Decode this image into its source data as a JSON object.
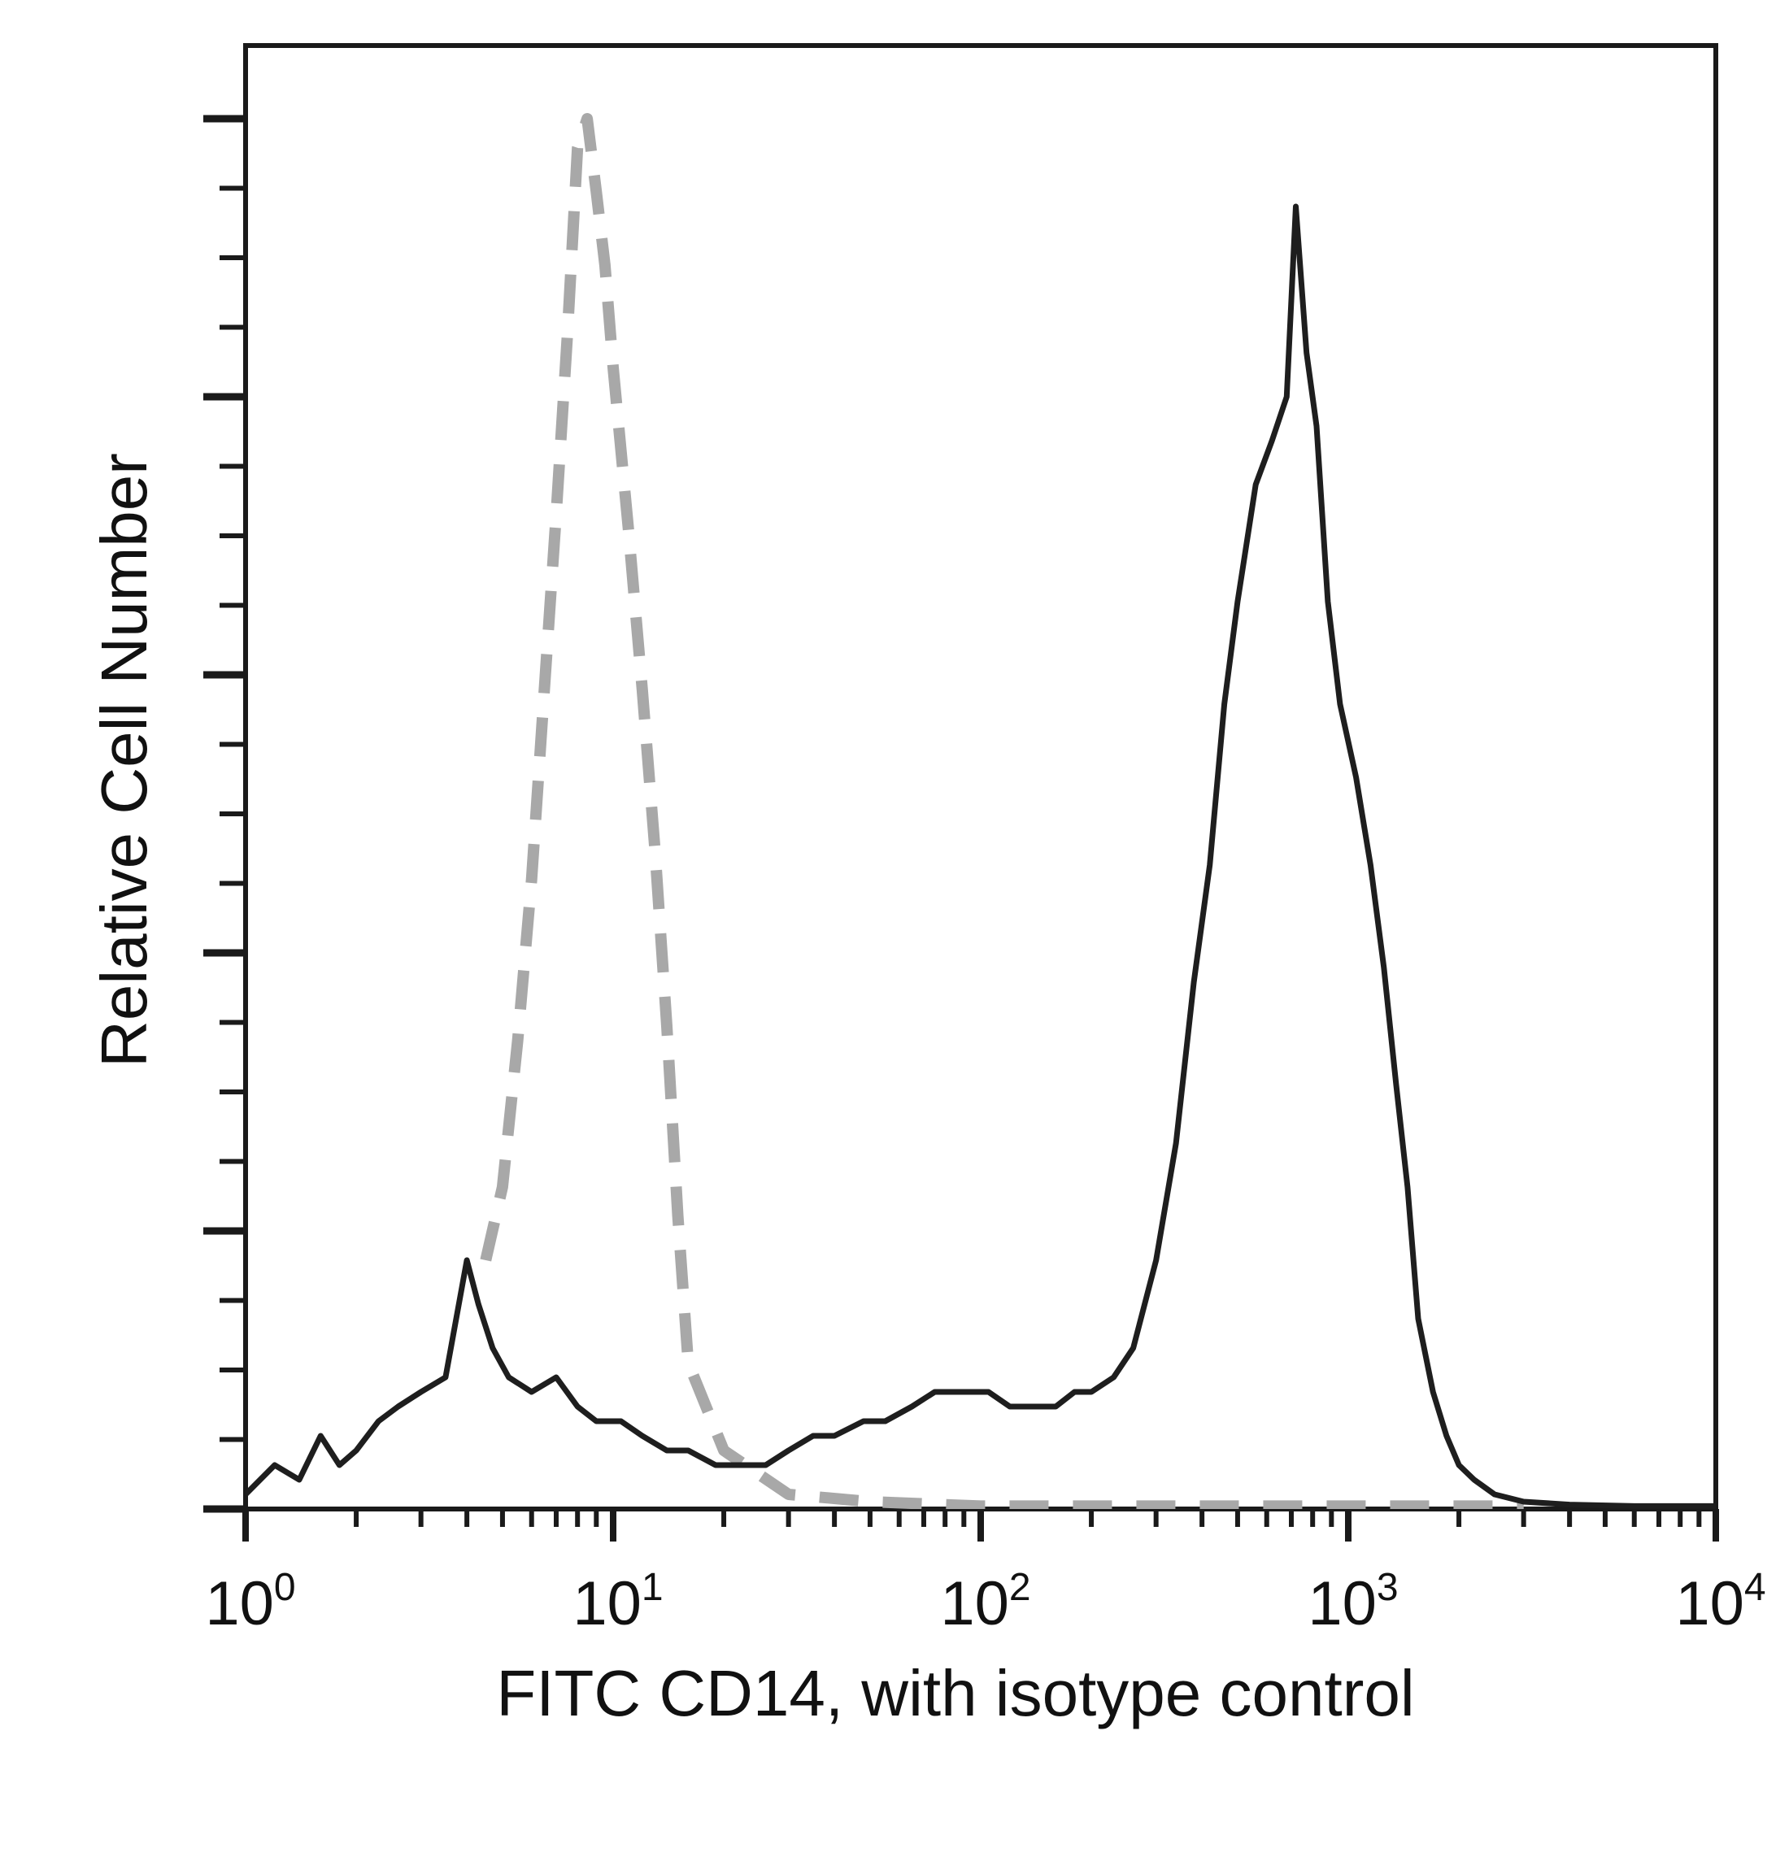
{
  "chart_data": {
    "type": "line",
    "title": "",
    "xlabel": "FITC CD14, with isotype control",
    "ylabel": "Relative Cell Number",
    "x_scale": "log",
    "xlim": [
      1,
      10000
    ],
    "ylim": [
      0,
      100
    ],
    "x_ticks": [
      {
        "value": 1,
        "base": "10",
        "exp": "0"
      },
      {
        "value": 10,
        "base": "10",
        "exp": "1"
      },
      {
        "value": 100,
        "base": "10",
        "exp": "2"
      },
      {
        "value": 1000,
        "base": "10",
        "exp": "3"
      },
      {
        "value": 10000,
        "base": "10",
        "exp": "4"
      }
    ],
    "y_major_ticks": [
      0,
      19,
      38,
      57,
      76,
      95
    ],
    "y_minor_step": 4.75,
    "grid": false,
    "legend": "none",
    "series": [
      {
        "style": "dashed",
        "color": "#a8a8a8",
        "x": [
          4.5,
          5.0,
          5.5,
          6.0,
          6.5,
          7.0,
          7.5,
          8.0,
          8.5,
          9.0,
          9.5,
          10.0,
          11.0,
          12.0,
          13.0,
          14.0,
          15.0,
          16.0,
          20,
          30,
          50,
          100,
          300,
          1000,
          3000
        ],
        "y": [
          17,
          22,
          32,
          43,
          56,
          68,
          80,
          93,
          95,
          90,
          85,
          78,
          67,
          56,
          45,
          33,
          20,
          10,
          4,
          1,
          0.5,
          0.2,
          0.2,
          0.2,
          0.2
        ]
      },
      {
        "style": "solid",
        "color": "#1e1e1e",
        "x": [
          1.0,
          1.2,
          1.4,
          1.6,
          1.8,
          2.0,
          2.3,
          2.6,
          3.0,
          3.5,
          4.0,
          4.3,
          4.7,
          5.2,
          6.0,
          7.0,
          8.0,
          9.0,
          10.5,
          12,
          14,
          16,
          19,
          22,
          26,
          30,
          35,
          40,
          48,
          55,
          65,
          75,
          90,
          105,
          120,
          140,
          160,
          180,
          200,
          230,
          260,
          300,
          340,
          380,
          420,
          460,
          500,
          560,
          620,
          680,
          720,
          770,
          820,
          880,
          950,
          1050,
          1150,
          1250,
          1350,
          1450,
          1550,
          1700,
          1850,
          2000,
          2200,
          2500,
          3000,
          4000,
          6000,
          8000,
          10000
        ],
        "y": [
          1,
          3,
          2,
          5,
          3,
          4,
          6,
          7,
          8,
          9,
          17,
          14,
          11,
          9,
          8,
          9,
          7,
          6,
          6,
          5,
          4,
          4,
          3,
          3,
          3,
          4,
          5,
          5,
          6,
          6,
          7,
          8,
          8,
          8,
          7,
          7,
          7,
          8,
          8,
          9,
          11,
          17,
          25,
          36,
          44,
          55,
          62,
          70,
          73,
          76,
          89,
          79,
          74,
          62,
          55,
          50,
          44,
          37,
          29,
          22,
          13,
          8,
          5,
          3,
          2,
          1,
          0.5,
          0.3,
          0.2,
          0.2,
          0.2
        ]
      }
    ]
  }
}
